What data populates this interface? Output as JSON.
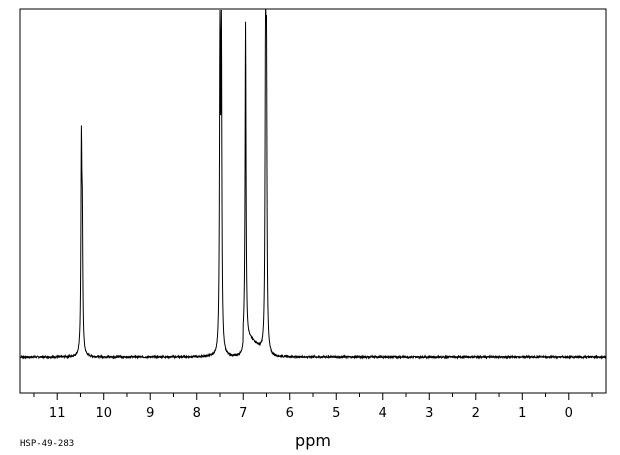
{
  "chart_data": {
    "type": "line",
    "title": "",
    "xlabel": "ppm",
    "ylabel": "",
    "sample_code": "HSP-49-283",
    "x_axis": {
      "min": -0.8,
      "max": 11.8,
      "reversed": true
    },
    "ylim": [
      0,
      1.0
    ],
    "grid": false,
    "tick_labels": [
      "11",
      "10",
      "9",
      "8",
      "7",
      "6",
      "5",
      "4",
      "3",
      "2",
      "1",
      "0"
    ],
    "tick_values": [
      11,
      10,
      9,
      8,
      7,
      6,
      5,
      4,
      3,
      2,
      1,
      0
    ],
    "minor_ticks_step": 0.5,
    "baseline": 0.0,
    "peaks": [
      {
        "ppm": 10.48,
        "height": 0.66
      },
      {
        "ppm": 10.46,
        "height": 0.38
      },
      {
        "ppm": 7.5,
        "height": 1.02
      },
      {
        "ppm": 7.47,
        "height": 1.01
      },
      {
        "ppm": 6.95,
        "height": 1.04
      },
      {
        "ppm": 6.52,
        "height": 1.0
      },
      {
        "ppm": 6.5,
        "height": 0.85
      }
    ],
    "broad_hump": {
      "from": 7.0,
      "to": 6.45,
      "height": 0.08
    }
  }
}
